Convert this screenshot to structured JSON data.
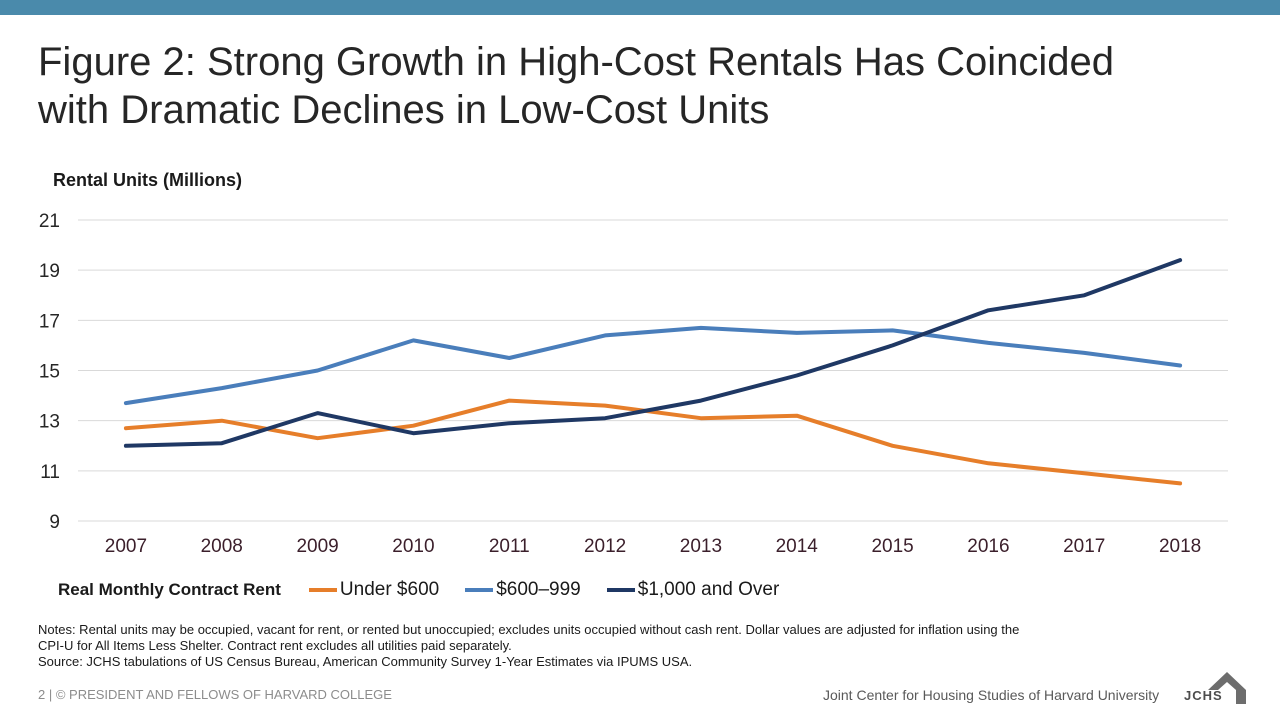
{
  "slide": {
    "title_line1": "Figure 2: Strong Growth in High-Cost Rentals Has Coincided",
    "title_line2": "with Dramatic Declines in Low-Cost Units",
    "notes_line1": "Notes: Rental units may be occupied, vacant for rent, or rented but unoccupied; excludes units occupied without cash rent. Dollar values are adjusted for inflation using the",
    "notes_line2": "CPI-U for All Items Less Shelter. Contract rent excludes all utilities paid separately.",
    "source": "Source: JCHS tabulations of US Census Bureau, American Community Survey 1-Year Estimates via IPUMS USA.",
    "footer_left": "2 | © PRESIDENT AND FELLOWS OF HARVARD COLLEGE",
    "footer_right": "Joint Center for Housing Studies of Harvard University",
    "logo_text": "JCHS",
    "accent_color": "#4a8aab"
  },
  "chart_data": {
    "type": "line",
    "ylabel": "Rental Units (Millions)",
    "legend_title": "Real Monthly Contract Rent",
    "legend_position": "bottom",
    "grid": true,
    "ylim": [
      9,
      21
    ],
    "yticks": [
      9,
      11,
      13,
      15,
      17,
      19,
      21
    ],
    "x": [
      "2007",
      "2008",
      "2009",
      "2010",
      "2011",
      "2012",
      "2013",
      "2014",
      "2015",
      "2016",
      "2017",
      "2018"
    ],
    "series": [
      {
        "name": "Under $600",
        "color": "#e67e2a",
        "values": [
          12.7,
          13.0,
          12.3,
          12.8,
          13.8,
          13.6,
          13.1,
          13.2,
          12.0,
          11.3,
          10.9,
          10.5
        ]
      },
      {
        "name": "$600–999",
        "color": "#4a7ebb",
        "values": [
          13.7,
          14.3,
          15.0,
          16.2,
          15.5,
          16.4,
          16.7,
          16.5,
          16.6,
          16.1,
          15.7,
          15.2
        ]
      },
      {
        "name": "$1,000 and Over",
        "color": "#1f3864",
        "values": [
          12.0,
          12.1,
          13.3,
          12.5,
          12.9,
          13.1,
          13.8,
          14.8,
          16.0,
          17.4,
          18.0,
          19.4
        ]
      }
    ]
  }
}
